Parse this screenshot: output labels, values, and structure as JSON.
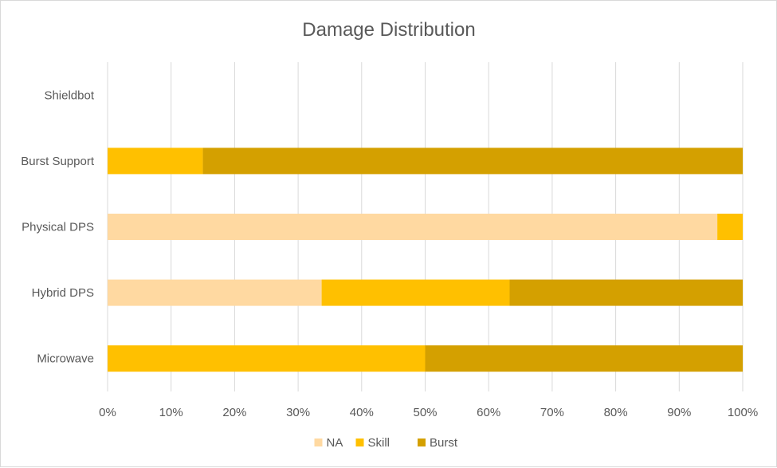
{
  "chart_data": {
    "type": "bar",
    "orientation": "horizontal",
    "stacked": "percent",
    "title": "Damage Distribution",
    "categories": [
      "Shieldbot",
      "Burst Support",
      "Physical DPS",
      "Hybrid DPS",
      "Microwave"
    ],
    "series": [
      {
        "name": "NA",
        "color": "#FFD9A1",
        "values": [
          0,
          0,
          96,
          33.7,
          0
        ]
      },
      {
        "name": "Skill",
        "color": "#FFC000",
        "values": [
          0,
          15,
          4,
          29.6,
          50
        ]
      },
      {
        "name": "Burst",
        "color": "#D4A000",
        "values": [
          0,
          85,
          0,
          36.7,
          50
        ]
      }
    ],
    "xlim": [
      0,
      100
    ],
    "xticks": [
      "0%",
      "10%",
      "20%",
      "30%",
      "40%",
      "50%",
      "60%",
      "70%",
      "80%",
      "90%",
      "100%"
    ],
    "grid": "vertical",
    "legend": "bottom"
  }
}
